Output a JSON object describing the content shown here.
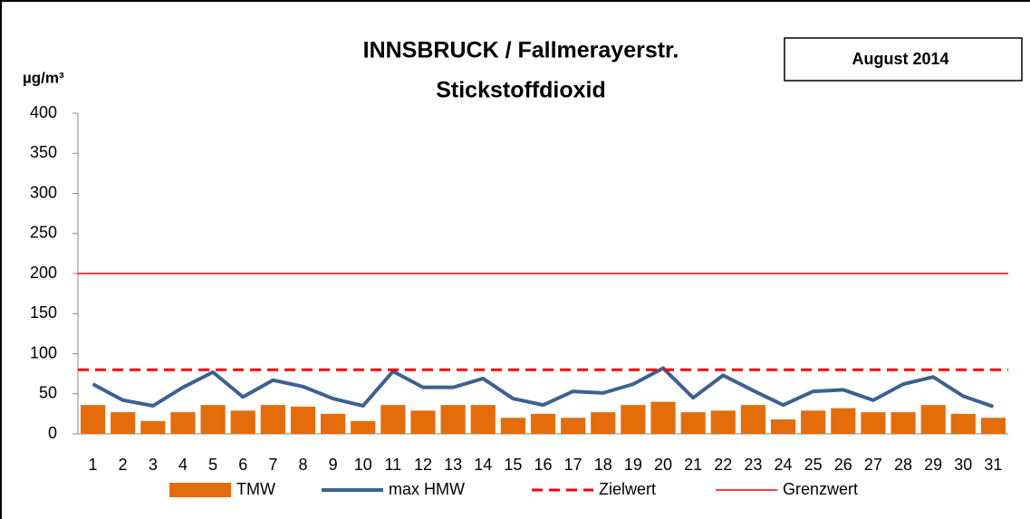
{
  "chart_data": {
    "type": "bar",
    "title": "INNSBRUCK / Fallmerayerstr.",
    "subtitle": "Stickstoffdioxid",
    "annotation": "August 2014",
    "y_label": "µg/m³",
    "categories": [
      "1",
      "2",
      "3",
      "4",
      "5",
      "6",
      "7",
      "8",
      "9",
      "10",
      "11",
      "12",
      "13",
      "14",
      "15",
      "16",
      "17",
      "18",
      "19",
      "20",
      "21",
      "22",
      "23",
      "24",
      "25",
      "26",
      "27",
      "28",
      "29",
      "30",
      "31"
    ],
    "series": [
      {
        "name": "TMW",
        "type": "bar",
        "color": "#e46c0a",
        "values": [
          36,
          27,
          16,
          27,
          36,
          29,
          36,
          34,
          25,
          16,
          36,
          29,
          36,
          36,
          20,
          25,
          20,
          27,
          36,
          40,
          27,
          29,
          36,
          18,
          29,
          32,
          27,
          27,
          36,
          25,
          20
        ]
      },
      {
        "name": "max HMW",
        "type": "line",
        "color": "#3c6190",
        "values": [
          62,
          42,
          35,
          58,
          77,
          46,
          67,
          59,
          44,
          35,
          78,
          58,
          58,
          69,
          44,
          36,
          53,
          51,
          62,
          82,
          45,
          73,
          54,
          36,
          53,
          55,
          42,
          62,
          71,
          47,
          34
        ]
      }
    ],
    "reference_lines": [
      {
        "name": "Zielwert",
        "value": 80,
        "color": "#ff0000",
        "dashed": true
      },
      {
        "name": "Grenzwert",
        "value": 200,
        "color": "#ff0000",
        "dashed": false
      }
    ],
    "ylim": [
      0,
      400
    ],
    "yticks": [
      0,
      50,
      100,
      150,
      200,
      250,
      300,
      350,
      400
    ],
    "legend": "bottom"
  }
}
